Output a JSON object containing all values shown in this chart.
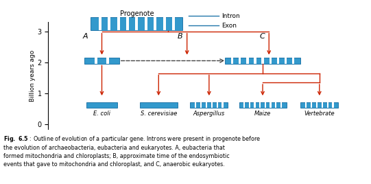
{
  "caption_bold": "Fig. 6.5",
  "caption_rest": " : Outline of evolution of a particular gene. Introns were present in progenote before\nthe evolution of archaeobacteria, eubacteria and eukaryotes. A, eubacteria that\nformed mitochondria and chloroplasts; B, approximate time of the endosymbiotic\nevents that gave to mitochondria and chloroplast, and C, anaerobic eukaryotes.",
  "ylabel": "Billion years ago",
  "yticks": [
    0,
    1,
    2,
    3
  ],
  "bg_color": "#ffffff",
  "line_color": "#cc2200",
  "gene_fill": "#3399cc",
  "gene_stripe": "#ffffff",
  "gene_edge": "#2277aa",
  "progenote_label": "Progenote",
  "intron_label": "Intron",
  "exon_label": "Exon",
  "label_A": "A",
  "label_B": "B",
  "label_C": "C"
}
